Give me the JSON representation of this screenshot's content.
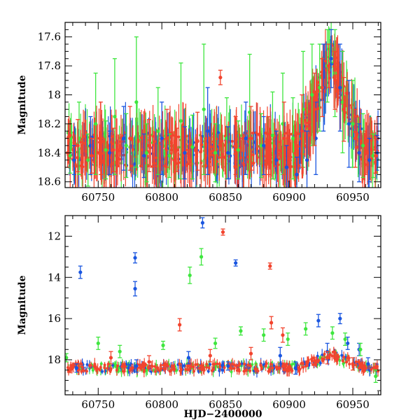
{
  "colors": {
    "green": "#3fe63f",
    "blue": "#1a56e0",
    "red": "#f2442e",
    "axis": "#000000"
  },
  "chart_data": [
    {
      "type": "scatter",
      "panel": "top",
      "xlabel": "",
      "ylabel": "Magnitude",
      "xlim": [
        60724,
        60972
      ],
      "ylim": [
        18.64,
        17.5
      ],
      "y_inverted": true,
      "x_ticks": [
        60750,
        60800,
        60850,
        60900,
        60950
      ],
      "x_tick_labels": [
        "60750",
        "60800",
        "60850",
        "60900",
        "60950"
      ],
      "y_ticks": [
        17.6,
        17.8,
        18.0,
        18.2,
        18.4,
        18.6
      ],
      "y_tick_labels": [
        "17.6",
        "17.8",
        "18",
        "18.2",
        "18.4",
        "18.6"
      ],
      "grid": false,
      "legend": "none",
      "error_bars": true,
      "series": [
        {
          "color": "green",
          "points": [
            [
              60728,
              18.42,
              0.12
            ],
            [
              60735,
              18.3,
              0.25
            ],
            [
              60742,
              18.45,
              0.18
            ],
            [
              60748,
              18.2,
              0.35
            ],
            [
              60756,
              18.38,
              0.2
            ],
            [
              60763,
              18.15,
              0.4
            ],
            [
              60772,
              18.35,
              0.22
            ],
            [
              60780,
              18.05,
              0.45
            ],
            [
              60788,
              18.4,
              0.2
            ],
            [
              60797,
              18.25,
              0.3
            ],
            [
              60806,
              18.42,
              0.15
            ],
            [
              60815,
              18.18,
              0.4
            ],
            [
              60824,
              18.36,
              0.22
            ],
            [
              60833,
              18.1,
              0.45
            ],
            [
              60842,
              18.4,
              0.2
            ],
            [
              60851,
              18.3,
              0.28
            ],
            [
              60860,
              18.38,
              0.2
            ],
            [
              60869,
              18.12,
              0.4
            ],
            [
              60878,
              18.35,
              0.22
            ],
            [
              60887,
              18.28,
              0.3
            ],
            [
              60895,
              18.2,
              0.35
            ],
            [
              60903,
              18.3,
              0.28
            ],
            [
              60911,
              18.1,
              0.4
            ],
            [
              60918,
              18.0,
              0.35
            ],
            [
              60924,
              17.95,
              0.3
            ],
            [
              60930,
              17.8,
              0.25
            ],
            [
              60936,
              17.85,
              0.3
            ],
            [
              60942,
              18.05,
              0.35
            ],
            [
              60950,
              18.2,
              0.3
            ],
            [
              60958,
              18.35,
              0.22
            ],
            [
              60966,
              18.42,
              0.15
            ]
          ]
        },
        {
          "color": "blue",
          "points": [
            [
              60731,
              18.45,
              0.1
            ],
            [
              60744,
              18.35,
              0.2
            ],
            [
              60759,
              18.4,
              0.15
            ],
            [
              60770,
              18.3,
              0.22
            ],
            [
              60786,
              18.42,
              0.15
            ],
            [
              60800,
              18.3,
              0.25
            ],
            [
              60818,
              18.4,
              0.18
            ],
            [
              60836,
              18.25,
              0.3
            ],
            [
              60852,
              18.4,
              0.18
            ],
            [
              60866,
              18.3,
              0.25
            ],
            [
              60880,
              18.35,
              0.2
            ],
            [
              60890,
              18.45,
              0.2
            ],
            [
              60898,
              18.5,
              0.15
            ],
            [
              60906,
              18.55,
              0.12
            ],
            [
              60914,
              18.45,
              0.2
            ],
            [
              60921,
              18.3,
              0.25
            ],
            [
              60927,
              17.95,
              0.3
            ],
            [
              60933,
              17.75,
              0.2
            ],
            [
              60940,
              17.95,
              0.3
            ],
            [
              60947,
              18.2,
              0.3
            ],
            [
              60955,
              18.4,
              0.2
            ],
            [
              60963,
              18.45,
              0.15
            ],
            [
              60969,
              18.4,
              0.12
            ]
          ]
        },
        {
          "color": "red",
          "points": [
            [
              60726,
              18.4,
              0.1
            ],
            [
              60734,
              18.35,
              0.18
            ],
            [
              60745,
              18.42,
              0.12
            ],
            [
              60752,
              18.3,
              0.25
            ],
            [
              60762,
              18.38,
              0.15
            ],
            [
              60775,
              18.3,
              0.22
            ],
            [
              60790,
              18.35,
              0.18
            ],
            [
              60804,
              18.3,
              0.2
            ],
            [
              60812,
              18.38,
              0.15
            ],
            [
              60828,
              18.32,
              0.2
            ],
            [
              60846,
              17.88,
              0.05
            ],
            [
              60858,
              18.35,
              0.2
            ],
            [
              60870,
              18.3,
              0.22
            ],
            [
              60884,
              18.35,
              0.2
            ],
            [
              60896,
              18.3,
              0.25
            ],
            [
              60910,
              18.25,
              0.25
            ],
            [
              60920,
              18.1,
              0.25
            ],
            [
              60926,
              17.95,
              0.2
            ],
            [
              60931,
              17.8,
              0.15
            ],
            [
              60936,
              17.9,
              0.2
            ],
            [
              60943,
              18.1,
              0.22
            ],
            [
              60952,
              18.3,
              0.2
            ],
            [
              60960,
              18.4,
              0.15
            ],
            [
              60968,
              18.42,
              0.12
            ]
          ]
        }
      ]
    },
    {
      "type": "scatter",
      "panel": "bottom",
      "xlabel": "HJD−2400000",
      "ylabel": "Magnitude",
      "xlim": [
        60724,
        60972
      ],
      "ylim": [
        19.7,
        11.0
      ],
      "y_inverted": true,
      "x_ticks": [
        60750,
        60800,
        60850,
        60900,
        60950
      ],
      "x_tick_labels": [
        "60750",
        "60800",
        "60850",
        "60900",
        "60950"
      ],
      "y_ticks": [
        12,
        14,
        16,
        18
      ],
      "y_tick_labels": [
        "12",
        "14",
        "16",
        "18"
      ],
      "grid": false,
      "legend": "none",
      "error_bars": true,
      "series": [
        {
          "color": "blue",
          "points": [
            [
              60736,
              13.75,
              0.3
            ],
            [
              60779,
              13.05,
              0.25
            ],
            [
              60779,
              14.55,
              0.35
            ],
            [
              60832,
              11.35,
              0.25
            ],
            [
              60858,
              13.3,
              0.15
            ],
            [
              60923,
              16.1,
              0.3
            ],
            [
              60940,
              16.0,
              0.25
            ],
            [
              60733,
              18.4,
              0.2
            ],
            [
              60780,
              18.3,
              0.3
            ],
            [
              60821,
              17.9,
              0.3
            ],
            [
              60852,
              18.3,
              0.2
            ],
            [
              60893,
              17.8,
              0.4
            ],
            [
              60905,
              18.4,
              0.3
            ],
            [
              60930,
              17.6,
              0.4
            ],
            [
              60946,
              17.2,
              0.3
            ],
            [
              60955,
              17.5,
              0.3
            ],
            [
              60962,
              18.2,
              0.3
            ]
          ]
        },
        {
          "color": "green",
          "points": [
            [
              60831,
              13.0,
              0.4
            ],
            [
              60822,
              13.9,
              0.4
            ],
            [
              60750,
              17.2,
              0.3
            ],
            [
              60725,
              17.9,
              0.2
            ],
            [
              60767,
              17.6,
              0.3
            ],
            [
              60801,
              17.3,
              0.2
            ],
            [
              60842,
              17.2,
              0.25
            ],
            [
              60862,
              16.6,
              0.2
            ],
            [
              60880,
              16.8,
              0.3
            ],
            [
              60899,
              17.0,
              0.3
            ],
            [
              60913,
              16.5,
              0.3
            ],
            [
              60934,
              16.7,
              0.3
            ],
            [
              60944,
              17.0,
              0.3
            ],
            [
              60956,
              17.5,
              0.3
            ],
            [
              60968,
              18.8,
              0.3
            ]
          ]
        },
        {
          "color": "red",
          "points": [
            [
              60848,
              11.8,
              0.15
            ],
            [
              60885,
              13.45,
              0.15
            ],
            [
              60814,
              16.3,
              0.3
            ],
            [
              60886,
              16.2,
              0.3
            ],
            [
              60895,
              16.8,
              0.35
            ],
            [
              60760,
              17.9,
              0.3
            ],
            [
              60790,
              18.1,
              0.3
            ],
            [
              60838,
              17.8,
              0.3
            ],
            [
              60870,
              17.7,
              0.3
            ],
            [
              60930,
              17.9,
              0.3
            ],
            [
              60950,
              18.2,
              0.3
            ]
          ]
        }
      ]
    }
  ]
}
